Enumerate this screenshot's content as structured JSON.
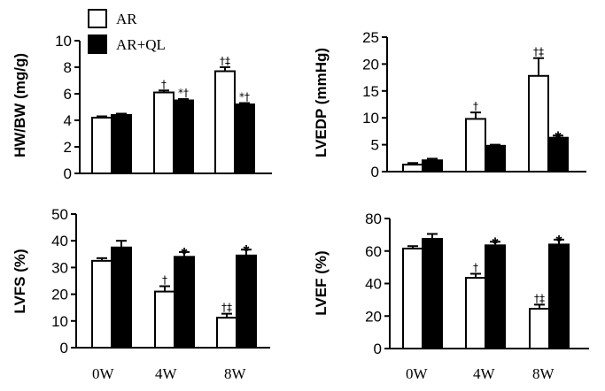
{
  "legend": [
    {
      "label": "AR",
      "fill": "#ffffff"
    },
    {
      "label": "AR+QL",
      "fill": "#000000"
    }
  ],
  "chart_data": [
    {
      "type": "bar",
      "id": "hwbw",
      "ylabel": "HW/BW (mg/g)",
      "ylim": [
        0,
        10
      ],
      "yticks": [
        0,
        2,
        4,
        6,
        8,
        10
      ],
      "categories": [
        "0W",
        "4W",
        "8W"
      ],
      "series": [
        {
          "name": "AR",
          "values": [
            4.2,
            6.1,
            7.7
          ],
          "errors": [
            0.1,
            0.15,
            0.3
          ]
        },
        {
          "name": "AR+QL",
          "values": [
            4.4,
            5.5,
            5.2
          ],
          "errors": [
            0.1,
            0.1,
            0.1
          ]
        }
      ],
      "annotations": [
        {
          "series": 0,
          "category": 1,
          "text": "†"
        },
        {
          "series": 1,
          "category": 1,
          "text": "*†"
        },
        {
          "series": 0,
          "category": 2,
          "text": "†‡"
        },
        {
          "series": 1,
          "category": 2,
          "text": "*†"
        }
      ]
    },
    {
      "type": "bar",
      "id": "lvedp",
      "ylabel": "LVEDP (mmHg)",
      "ylim": [
        0,
        25
      ],
      "yticks": [
        0,
        5,
        10,
        15,
        20,
        25
      ],
      "categories": [
        "0W",
        "4W",
        "8W"
      ],
      "series": [
        {
          "name": "AR",
          "values": [
            1.3,
            9.8,
            17.8
          ],
          "errors": [
            0.3,
            1.2,
            3.3
          ]
        },
        {
          "name": "AR+QL",
          "values": [
            2.1,
            4.8,
            6.3
          ],
          "errors": [
            0.3,
            0.2,
            0.4
          ]
        }
      ],
      "annotations": [
        {
          "series": 0,
          "category": 1,
          "text": "†"
        },
        {
          "series": 0,
          "category": 2,
          "text": "†‡"
        },
        {
          "series": 1,
          "category": 2,
          "text": "*"
        }
      ]
    },
    {
      "type": "bar",
      "id": "lvfs",
      "ylabel": "LVFS (%)",
      "ylim": [
        0,
        50
      ],
      "yticks": [
        0,
        10,
        20,
        30,
        40,
        50
      ],
      "categories": [
        "0W",
        "4W",
        "8W"
      ],
      "series": [
        {
          "name": "AR",
          "values": [
            32.5,
            21,
            11.2
          ],
          "errors": [
            1,
            2,
            1.5
          ]
        },
        {
          "name": "AR+QL",
          "values": [
            37.5,
            34,
            34.5
          ],
          "errors": [
            2.5,
            1.8,
            2.2
          ]
        }
      ],
      "annotations": [
        {
          "series": 0,
          "category": 1,
          "text": "†"
        },
        {
          "series": 1,
          "category": 1,
          "text": "*"
        },
        {
          "series": 0,
          "category": 2,
          "text": "†‡"
        },
        {
          "series": 1,
          "category": 2,
          "text": "*"
        }
      ]
    },
    {
      "type": "bar",
      "id": "lvef",
      "ylabel": "LVEF (%)",
      "ylim": [
        0,
        80
      ],
      "yticks": [
        0,
        20,
        40,
        60,
        80
      ],
      "categories": [
        "0W",
        "4W",
        "8W"
      ],
      "series": [
        {
          "name": "AR",
          "values": [
            61.5,
            43.5,
            24.5
          ],
          "errors": [
            1.5,
            2.5,
            2.5
          ]
        },
        {
          "name": "AR+QL",
          "values": [
            67.5,
            63.5,
            64
          ],
          "errors": [
            3,
            2.2,
            3
          ]
        }
      ],
      "annotations": [
        {
          "series": 0,
          "category": 1,
          "text": "†"
        },
        {
          "series": 1,
          "category": 1,
          "text": "*"
        },
        {
          "series": 0,
          "category": 2,
          "text": "†‡"
        },
        {
          "series": 1,
          "category": 2,
          "text": "*"
        }
      ]
    }
  ]
}
